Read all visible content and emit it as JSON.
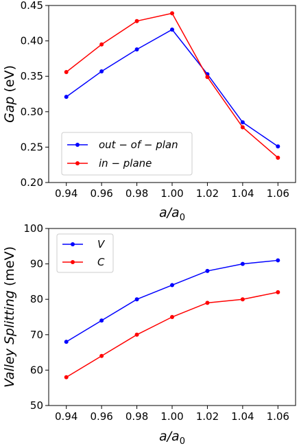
{
  "chart_data": [
    {
      "type": "line",
      "x": [
        0.94,
        0.96,
        0.98,
        1.0,
        1.02,
        1.04,
        1.06
      ],
      "xtick_labels": [
        "0.94",
        "0.96",
        "0.98",
        "1.00",
        "1.02",
        "1.04",
        "1.06"
      ],
      "xlabel_base": "a/a",
      "xlabel_sub": "0",
      "ylabel_italic": "Gap",
      "ylabel_rest": " (eV)",
      "ylim": [
        0.2,
        0.45
      ],
      "yticks": [
        0.2,
        0.25,
        0.3,
        0.35,
        0.4,
        0.45
      ],
      "ytick_labels": [
        "0.20",
        "0.25",
        "0.30",
        "0.35",
        "0.40",
        "0.45"
      ],
      "xlim": [
        0.93,
        1.07
      ],
      "legend_position": "lower-left",
      "grid": false,
      "series": [
        {
          "name": "out − of − plan",
          "color": "#0000ff",
          "values": [
            0.321,
            0.357,
            0.388,
            0.416,
            0.353,
            0.285,
            0.251
          ]
        },
        {
          "name": "in − plane",
          "color": "#ff0000",
          "values": [
            0.356,
            0.395,
            0.428,
            0.439,
            0.349,
            0.278,
            0.235
          ]
        }
      ]
    },
    {
      "type": "line",
      "x": [
        0.94,
        0.96,
        0.98,
        1.0,
        1.02,
        1.04,
        1.06
      ],
      "xtick_labels": [
        "0.94",
        "0.96",
        "0.98",
        "1.00",
        "1.02",
        "1.04",
        "1.06"
      ],
      "xlabel_base": "a/a",
      "xlabel_sub": "0",
      "ylabel_italic": "Valley Splitting",
      "ylabel_rest": " (meV)",
      "ylim": [
        50,
        100
      ],
      "yticks": [
        50,
        60,
        70,
        80,
        90,
        100
      ],
      "ytick_labels": [
        "50",
        "60",
        "70",
        "80",
        "90",
        "100"
      ],
      "xlim": [
        0.93,
        1.07
      ],
      "legend_position": "upper-left",
      "grid": false,
      "series": [
        {
          "name": "V",
          "color": "#0000ff",
          "values": [
            68,
            74,
            80,
            84,
            88,
            90,
            91
          ]
        },
        {
          "name": "C",
          "color": "#ff0000",
          "values": [
            58,
            64,
            70,
            75,
            79,
            80,
            82
          ]
        }
      ]
    }
  ]
}
